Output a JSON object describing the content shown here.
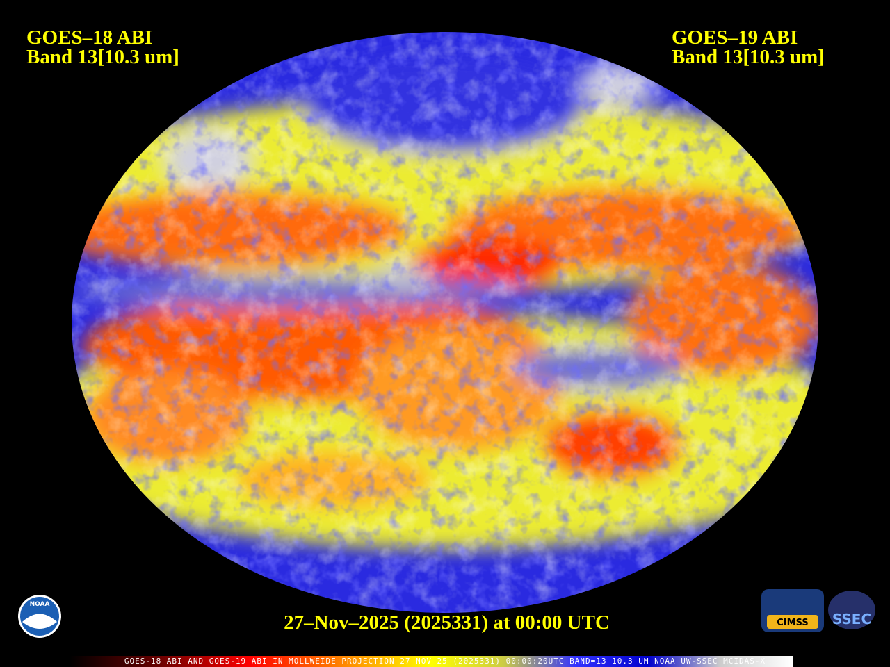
{
  "header": {
    "left": {
      "satellite": "GOES–18 ABI",
      "band": "Band 13[10.3 um]"
    },
    "right": {
      "satellite": "GOES–19 ABI",
      "band": "Band 13[10.3 um]"
    }
  },
  "footer": {
    "timestamp": "27–Nov–2025 (2025331) at 00:00 UTC",
    "caption": "GOES-18 ABI AND GOES-19 ABI IN MOLLWEIDE PROJECTION 27 NOV 25 (2025331) 00:00:20UTC BAND=13 10.3 UM NOAA UW-SSEC MCIDAS-X"
  },
  "logos": {
    "noaa": "NOAA",
    "cimss": "CIMSS",
    "ssec": "SSEC"
  }
}
